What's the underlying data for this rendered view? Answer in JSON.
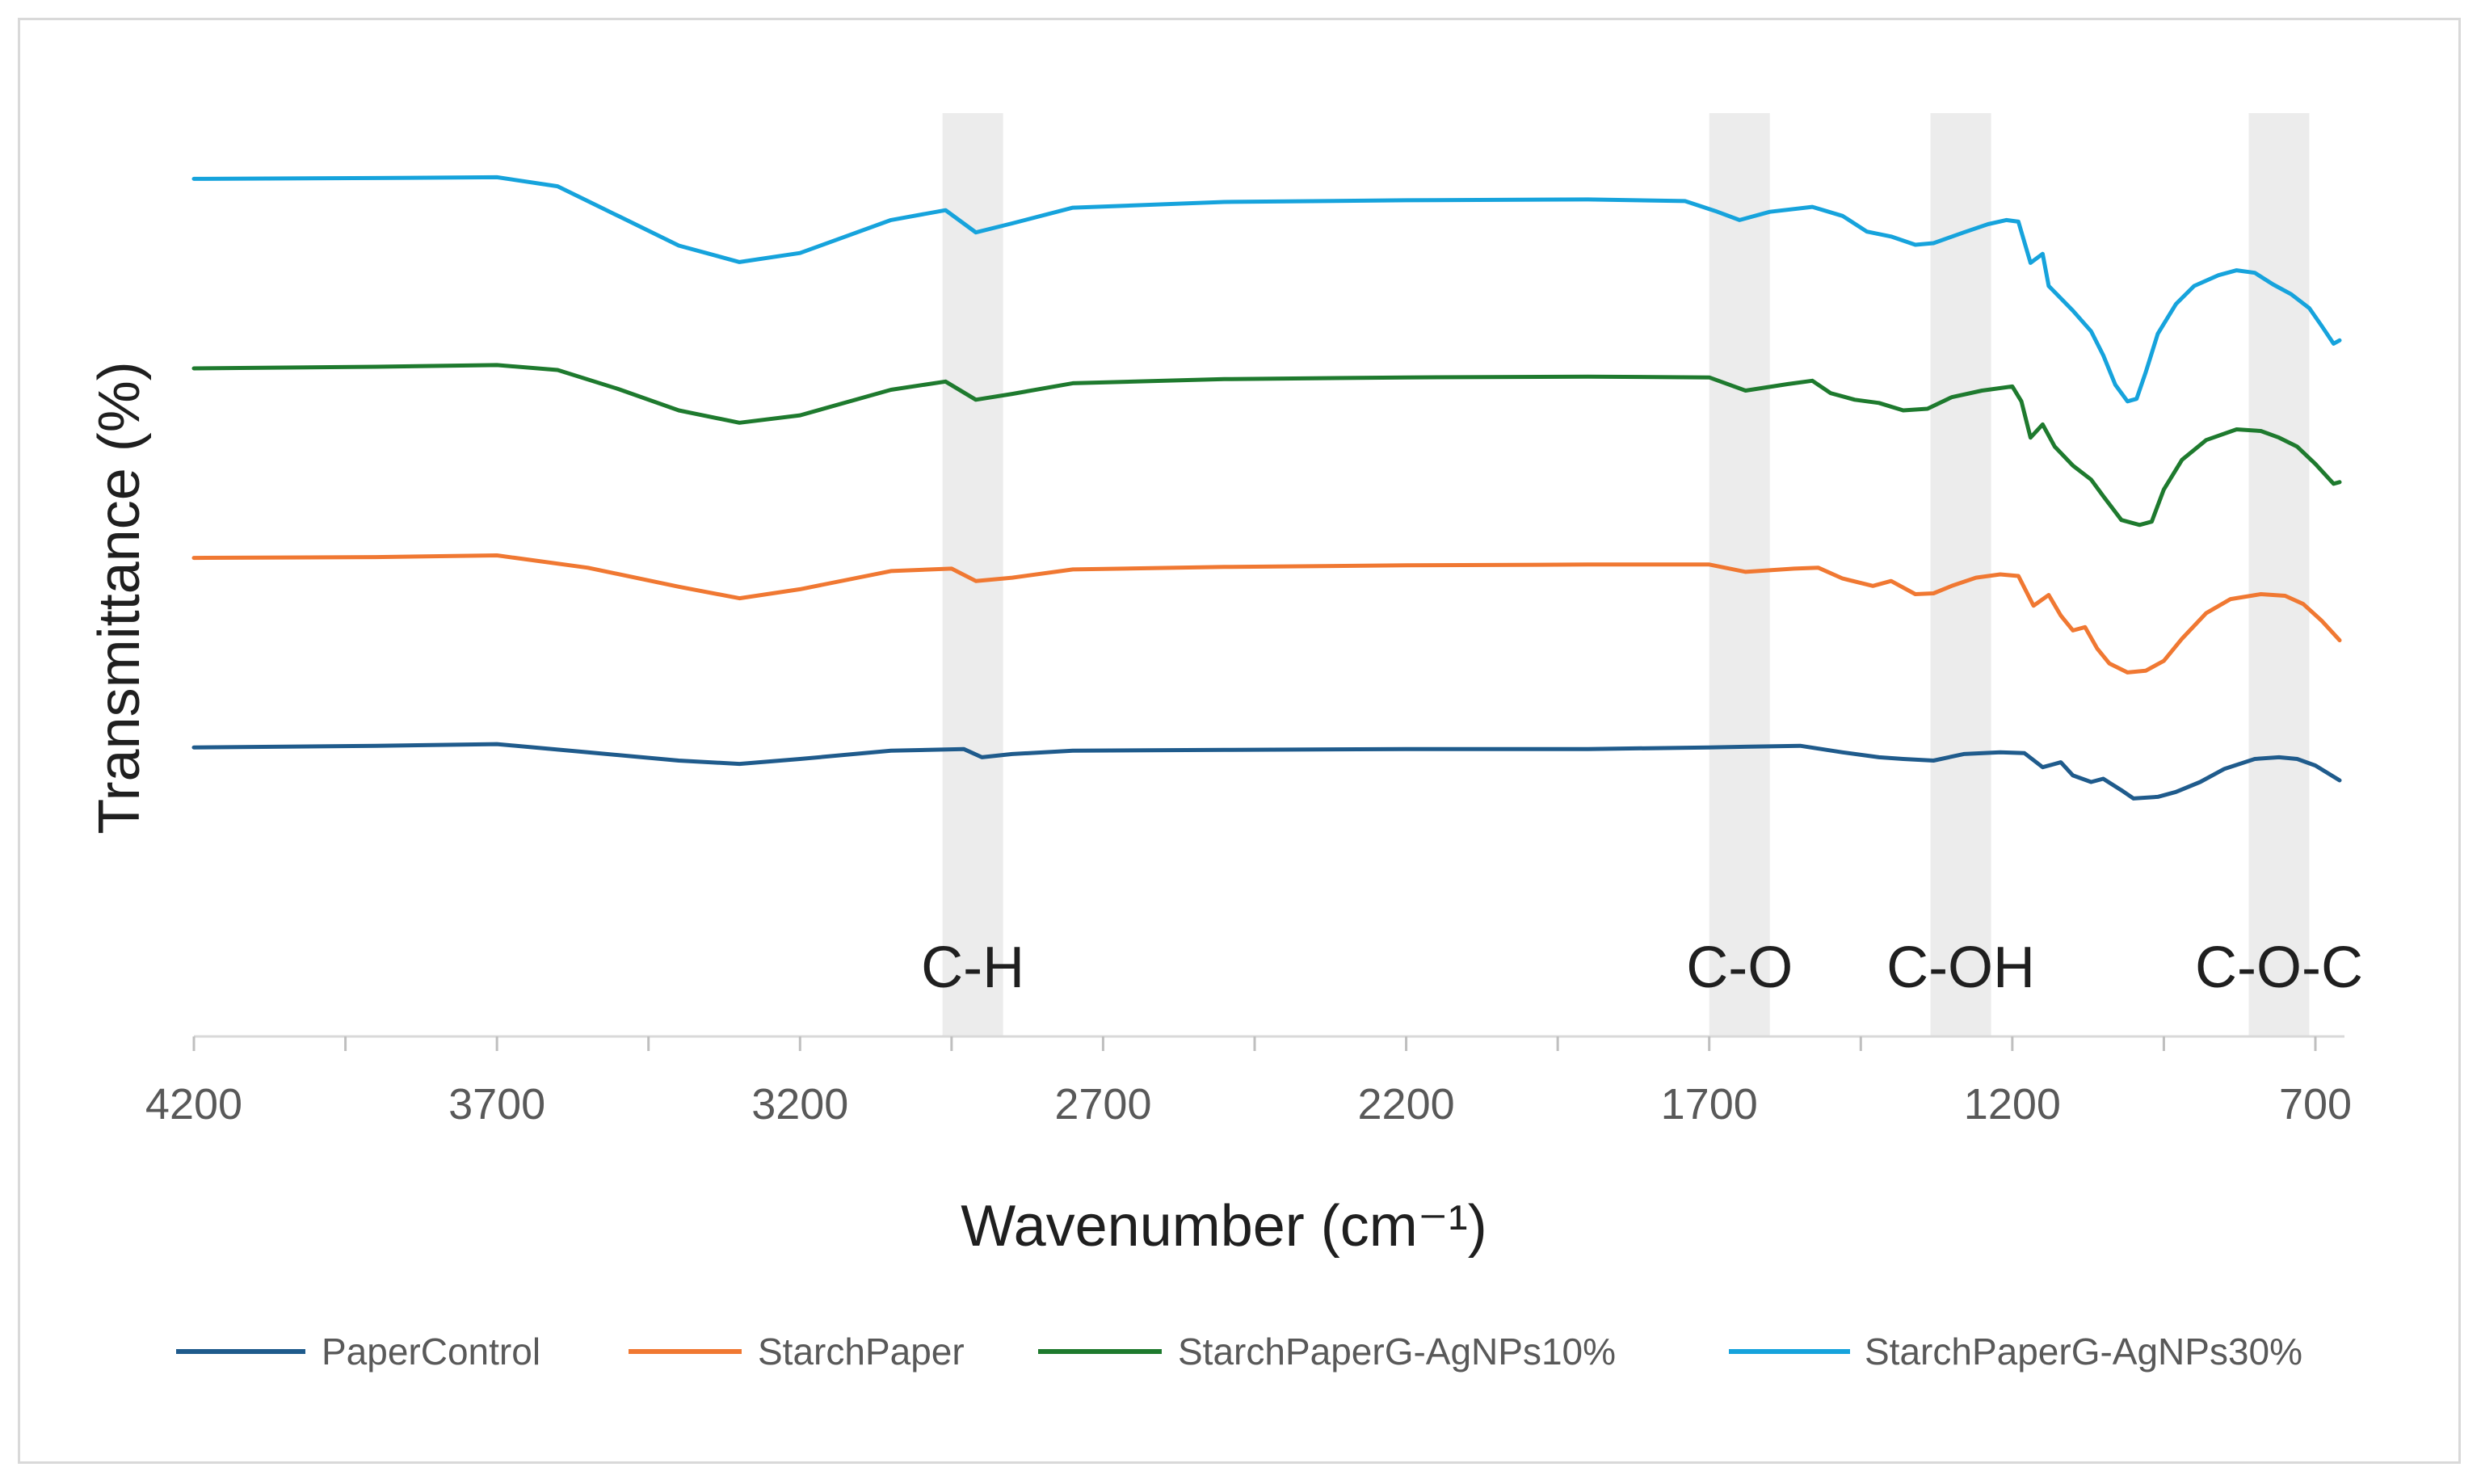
{
  "chart_data": {
    "type": "line",
    "title": "",
    "xlabel": "Wavenumber (cm⁻¹)",
    "ylabel": "Transmittance (%)",
    "xlim": [
      4200,
      650
    ],
    "x_reversed": true,
    "xticks": [
      4200,
      3700,
      3200,
      2700,
      2200,
      1700,
      1200,
      700
    ],
    "ylim": [
      0,
      100
    ],
    "grid": false,
    "legend_position": "bottom",
    "bands": [
      {
        "label": "C-H",
        "from": 2965,
        "to": 2865
      },
      {
        "label": "C-O",
        "from": 1700,
        "to": 1600
      },
      {
        "label": "C-OH",
        "from": 1335,
        "to": 1235
      },
      {
        "label": "C-O-C",
        "from": 810,
        "to": 710
      }
    ],
    "series": [
      {
        "name": "PaperControl",
        "color": "#1f5b8c",
        "points": [
          [
            4200,
            24
          ],
          [
            3900,
            24.2
          ],
          [
            3700,
            24.4
          ],
          [
            3550,
            23.4
          ],
          [
            3400,
            22.4
          ],
          [
            3300,
            22.0
          ],
          [
            3200,
            22.6
          ],
          [
            3050,
            23.6
          ],
          [
            2930,
            23.8
          ],
          [
            2900,
            22.8
          ],
          [
            2850,
            23.2
          ],
          [
            2750,
            23.6
          ],
          [
            2500,
            23.7
          ],
          [
            2200,
            23.8
          ],
          [
            1900,
            23.8
          ],
          [
            1700,
            24.0
          ],
          [
            1550,
            24.2
          ],
          [
            1480,
            23.4
          ],
          [
            1420,
            22.8
          ],
          [
            1380,
            22.6
          ],
          [
            1330,
            22.4
          ],
          [
            1280,
            23.2
          ],
          [
            1220,
            23.4
          ],
          [
            1180,
            23.3
          ],
          [
            1150,
            21.6
          ],
          [
            1120,
            22.2
          ],
          [
            1100,
            20.6
          ],
          [
            1070,
            19.8
          ],
          [
            1050,
            20.2
          ],
          [
            1020,
            18.8
          ],
          [
            1000,
            17.8
          ],
          [
            960,
            18.0
          ],
          [
            930,
            18.6
          ],
          [
            890,
            19.8
          ],
          [
            850,
            21.4
          ],
          [
            800,
            22.6
          ],
          [
            760,
            22.8
          ],
          [
            730,
            22.6
          ],
          [
            700,
            21.8
          ],
          [
            660,
            20.0
          ]
        ]
      },
      {
        "name": "StarchPaper",
        "color": "#f07832",
        "points": [
          [
            4200,
            47
          ],
          [
            3900,
            47.1
          ],
          [
            3700,
            47.3
          ],
          [
            3550,
            45.8
          ],
          [
            3400,
            43.5
          ],
          [
            3300,
            42.1
          ],
          [
            3200,
            43.2
          ],
          [
            3050,
            45.4
          ],
          [
            2950,
            45.7
          ],
          [
            2910,
            44.2
          ],
          [
            2850,
            44.6
          ],
          [
            2750,
            45.6
          ],
          [
            2500,
            45.9
          ],
          [
            2200,
            46.1
          ],
          [
            1900,
            46.2
          ],
          [
            1700,
            46.2
          ],
          [
            1640,
            45.3
          ],
          [
            1560,
            45.7
          ],
          [
            1520,
            45.8
          ],
          [
            1480,
            44.5
          ],
          [
            1430,
            43.6
          ],
          [
            1400,
            44.2
          ],
          [
            1360,
            42.6
          ],
          [
            1330,
            42.7
          ],
          [
            1300,
            43.6
          ],
          [
            1260,
            44.6
          ],
          [
            1220,
            45.0
          ],
          [
            1190,
            44.8
          ],
          [
            1165,
            41.2
          ],
          [
            1140,
            42.5
          ],
          [
            1120,
            40.0
          ],
          [
            1100,
            38.2
          ],
          [
            1080,
            38.6
          ],
          [
            1060,
            36.0
          ],
          [
            1040,
            34.2
          ],
          [
            1010,
            33.1
          ],
          [
            980,
            33.3
          ],
          [
            950,
            34.5
          ],
          [
            920,
            37.2
          ],
          [
            880,
            40.3
          ],
          [
            840,
            42.0
          ],
          [
            790,
            42.6
          ],
          [
            750,
            42.4
          ],
          [
            720,
            41.4
          ],
          [
            690,
            39.4
          ],
          [
            660,
            37.0
          ]
        ]
      },
      {
        "name": "StarchPaperG-AgNPs10%",
        "color": "#1e7a2e",
        "points": [
          [
            4200,
            70
          ],
          [
            3900,
            70.2
          ],
          [
            3700,
            70.4
          ],
          [
            3600,
            69.8
          ],
          [
            3500,
            67.5
          ],
          [
            3400,
            64.9
          ],
          [
            3300,
            63.4
          ],
          [
            3200,
            64.3
          ],
          [
            3050,
            67.4
          ],
          [
            2960,
            68.4
          ],
          [
            2910,
            66.2
          ],
          [
            2850,
            66.9
          ],
          [
            2750,
            68.2
          ],
          [
            2500,
            68.7
          ],
          [
            2200,
            68.9
          ],
          [
            1900,
            69.0
          ],
          [
            1700,
            68.9
          ],
          [
            1640,
            67.3
          ],
          [
            1570,
            68.1
          ],
          [
            1530,
            68.5
          ],
          [
            1500,
            67.0
          ],
          [
            1460,
            66.2
          ],
          [
            1420,
            65.8
          ],
          [
            1380,
            64.9
          ],
          [
            1340,
            65.1
          ],
          [
            1300,
            66.5
          ],
          [
            1250,
            67.3
          ],
          [
            1200,
            67.8
          ],
          [
            1185,
            66.0
          ],
          [
            1170,
            61.6
          ],
          [
            1150,
            63.2
          ],
          [
            1130,
            60.5
          ],
          [
            1100,
            58.2
          ],
          [
            1070,
            56.5
          ],
          [
            1050,
            54.5
          ],
          [
            1020,
            51.6
          ],
          [
            990,
            51.0
          ],
          [
            970,
            51.4
          ],
          [
            950,
            55.3
          ],
          [
            920,
            58.9
          ],
          [
            880,
            61.3
          ],
          [
            830,
            62.6
          ],
          [
            790,
            62.4
          ],
          [
            760,
            61.6
          ],
          [
            730,
            60.5
          ],
          [
            700,
            58.4
          ],
          [
            670,
            56.0
          ],
          [
            660,
            56.2
          ]
        ]
      },
      {
        "name": "StarchPaperG-AgNPs30%",
        "color": "#16a3dc",
        "points": [
          [
            4200,
            93
          ],
          [
            3900,
            93.1
          ],
          [
            3700,
            93.2
          ],
          [
            3600,
            92.1
          ],
          [
            3500,
            88.5
          ],
          [
            3400,
            84.9
          ],
          [
            3300,
            82.9
          ],
          [
            3200,
            84.0
          ],
          [
            3050,
            88.0
          ],
          [
            2960,
            89.2
          ],
          [
            2910,
            86.5
          ],
          [
            2850,
            87.6
          ],
          [
            2750,
            89.5
          ],
          [
            2500,
            90.2
          ],
          [
            2200,
            90.4
          ],
          [
            1900,
            90.5
          ],
          [
            1740,
            90.3
          ],
          [
            1690,
            89.1
          ],
          [
            1650,
            88.0
          ],
          [
            1600,
            89.0
          ],
          [
            1530,
            89.6
          ],
          [
            1480,
            88.5
          ],
          [
            1440,
            86.6
          ],
          [
            1400,
            86.0
          ],
          [
            1360,
            85.0
          ],
          [
            1330,
            85.2
          ],
          [
            1280,
            86.5
          ],
          [
            1240,
            87.5
          ],
          [
            1210,
            88.0
          ],
          [
            1190,
            87.8
          ],
          [
            1170,
            82.8
          ],
          [
            1150,
            83.9
          ],
          [
            1140,
            80.0
          ],
          [
            1100,
            77.0
          ],
          [
            1070,
            74.5
          ],
          [
            1050,
            71.6
          ],
          [
            1030,
            68.0
          ],
          [
            1010,
            66.0
          ],
          [
            995,
            66.3
          ],
          [
            980,
            69.5
          ],
          [
            960,
            74.2
          ],
          [
            930,
            77.8
          ],
          [
            900,
            80.0
          ],
          [
            860,
            81.3
          ],
          [
            830,
            81.9
          ],
          [
            800,
            81.6
          ],
          [
            770,
            80.2
          ],
          [
            740,
            79.0
          ],
          [
            710,
            77.3
          ],
          [
            690,
            75.2
          ],
          [
            670,
            73.0
          ],
          [
            660,
            73.4
          ]
        ]
      }
    ]
  }
}
